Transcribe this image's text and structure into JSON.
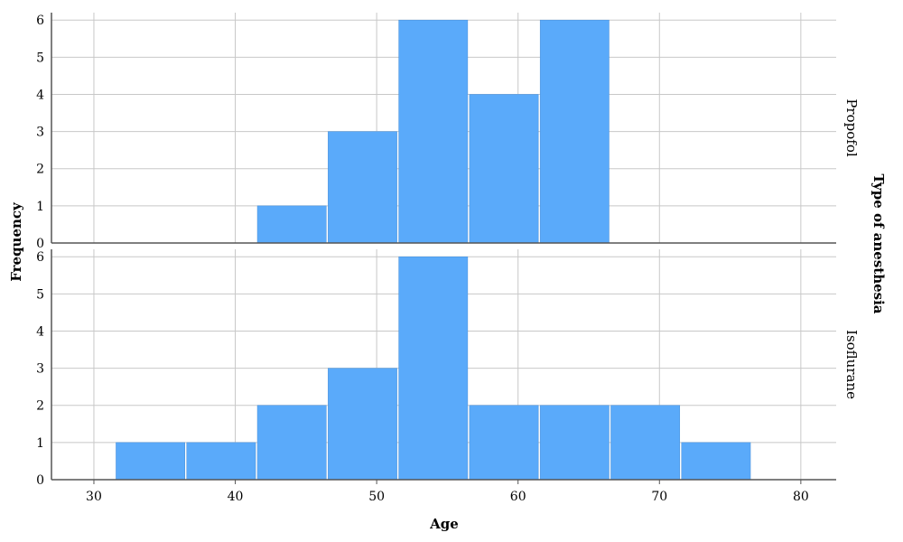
{
  "chart_data": {
    "type": "bar",
    "xlabel": "Age",
    "ylabel": "Frequency",
    "facet_title": "Type of anesthesia",
    "xlim": [
      27,
      82.5
    ],
    "ylim": [
      0,
      6.2
    ],
    "x_ticks": [
      30,
      40,
      50,
      60,
      70,
      80
    ],
    "y_ticks": [
      0,
      1,
      2,
      3,
      4,
      5,
      6
    ],
    "grid": true,
    "bar_color": "#5aaafa",
    "grid_color": "#c8c8c8",
    "bin_width": 5,
    "panels": [
      {
        "name": "Propofol",
        "bins": [
          {
            "start": 31.5,
            "value": 0
          },
          {
            "start": 36.5,
            "value": 0
          },
          {
            "start": 41.5,
            "value": 1
          },
          {
            "start": 46.5,
            "value": 3
          },
          {
            "start": 51.5,
            "value": 6
          },
          {
            "start": 56.5,
            "value": 4
          },
          {
            "start": 61.5,
            "value": 6
          },
          {
            "start": 66.5,
            "value": 0
          },
          {
            "start": 71.5,
            "value": 0
          }
        ]
      },
      {
        "name": "Isoflurane",
        "bins": [
          {
            "start": 31.5,
            "value": 1
          },
          {
            "start": 36.5,
            "value": 1
          },
          {
            "start": 41.5,
            "value": 2
          },
          {
            "start": 46.5,
            "value": 3
          },
          {
            "start": 51.5,
            "value": 6
          },
          {
            "start": 56.5,
            "value": 2
          },
          {
            "start": 61.5,
            "value": 2
          },
          {
            "start": 66.5,
            "value": 2
          },
          {
            "start": 71.5,
            "value": 1
          }
        ]
      }
    ]
  }
}
